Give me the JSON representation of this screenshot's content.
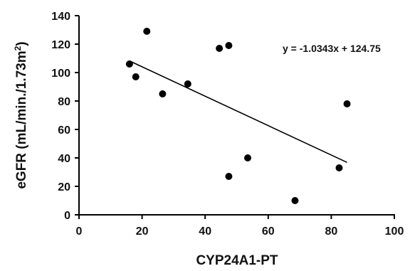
{
  "chart_data": {
    "type": "scatter",
    "title": "",
    "xlabel": "CYP24A1-PT",
    "ylabel": {
      "main": "eGFR (mL/min./1.73m",
      "sup": "2",
      "close": ")"
    },
    "xlim": [
      0,
      100
    ],
    "ylim": [
      0,
      140
    ],
    "x_ticks": [
      "0",
      "20",
      "40",
      "60",
      "80",
      "100"
    ],
    "y_ticks": [
      "0",
      "20",
      "40",
      "60",
      "80",
      "100",
      "120",
      "140"
    ],
    "grid": false,
    "legend": "none",
    "points": [
      {
        "x": 16,
        "y": 106
      },
      {
        "x": 18,
        "y": 97
      },
      {
        "x": 21.5,
        "y": 129
      },
      {
        "x": 26.5,
        "y": 85
      },
      {
        "x": 34.5,
        "y": 92
      },
      {
        "x": 44.5,
        "y": 117
      },
      {
        "x": 47.5,
        "y": 119
      },
      {
        "x": 47.5,
        "y": 27
      },
      {
        "x": 53.5,
        "y": 40
      },
      {
        "x": 68.5,
        "y": 10
      },
      {
        "x": 82.5,
        "y": 33
      },
      {
        "x": 85,
        "y": 78
      }
    ],
    "trendline": {
      "equation": "y = -1.0343x + 124.75",
      "slope": -1.0343,
      "intercept": 124.75,
      "x_range": [
        16,
        85
      ]
    },
    "colors": {
      "points": "#000000",
      "trendline": "#000000",
      "axes": "#000000"
    }
  }
}
